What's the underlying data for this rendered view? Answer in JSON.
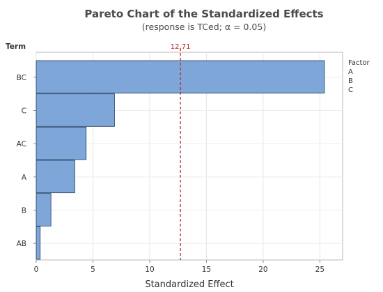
{
  "chart_data": {
    "type": "bar",
    "orientation": "horizontal",
    "title": "Pareto Chart of the Standardized Effects",
    "subtitle": "(response is TCed; α = 0.05)",
    "xlabel": "Standardized Effect",
    "ylabel": "Term",
    "categories": [
      "BC",
      "C",
      "AC",
      "A",
      "B",
      "AB"
    ],
    "values": [
      25.4,
      6.9,
      4.4,
      3.4,
      1.3,
      0.35
    ],
    "xlim": [
      0,
      27
    ],
    "xticks": [
      0,
      5,
      10,
      15,
      20,
      25
    ],
    "xtick_labels": [
      "0",
      "5",
      "10",
      "15",
      "20",
      "25"
    ],
    "reference_line": {
      "value": 12.71,
      "label": "12.71",
      "color": "#b22222"
    },
    "legend": {
      "title": "Factor",
      "entries": [
        "A",
        "B",
        "C"
      ],
      "placement": "right"
    },
    "grid": true,
    "bar_color": "#7ea6d8",
    "bar_edge_color": "#1f3b5c"
  }
}
